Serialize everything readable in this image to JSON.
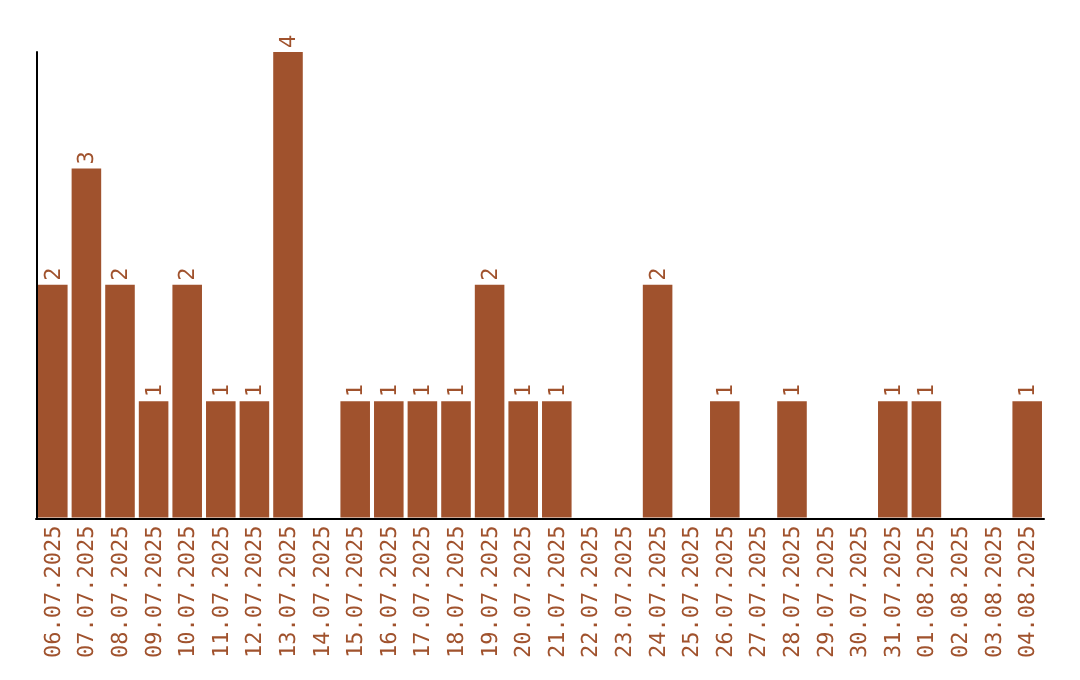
{
  "chart_data": {
    "type": "bar",
    "categories": [
      "06.07.2025",
      "07.07.2025",
      "08.07.2025",
      "09.07.2025",
      "10.07.2025",
      "11.07.2025",
      "12.07.2025",
      "13.07.2025",
      "14.07.2025",
      "15.07.2025",
      "16.07.2025",
      "17.07.2025",
      "18.07.2025",
      "19.07.2025",
      "20.07.2025",
      "21.07.2025",
      "22.07.2025",
      "23.07.2025",
      "24.07.2025",
      "25.07.2025",
      "26.07.2025",
      "27.07.2025",
      "28.07.2025",
      "29.07.2025",
      "30.07.2025",
      "31.07.2025",
      "01.08.2025",
      "02.08.2025",
      "03.08.2025",
      "04.08.2025"
    ],
    "values": [
      2,
      3,
      2,
      1,
      2,
      1,
      1,
      4,
      null,
      1,
      1,
      1,
      1,
      2,
      1,
      1,
      null,
      null,
      2,
      null,
      1,
      null,
      1,
      null,
      null,
      1,
      1,
      null,
      null,
      1
    ],
    "color": "#a0522d",
    "data_labels": true
  }
}
